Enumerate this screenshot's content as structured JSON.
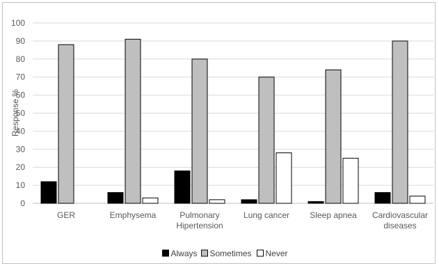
{
  "chart_data": {
    "type": "bar",
    "title": "",
    "xlabel": "",
    "ylabel": "Response %",
    "ylim": [
      0,
      100
    ],
    "yticks": [
      0,
      10,
      20,
      30,
      40,
      50,
      60,
      70,
      80,
      90,
      100
    ],
    "grid": true,
    "legend_position": "bottom",
    "categories": [
      [
        "GER"
      ],
      [
        "Emphysema"
      ],
      [
        "Pulmonary",
        "Hipertension"
      ],
      [
        "Lung cancer"
      ],
      [
        "Sleep apnea"
      ],
      [
        "Cardiovascular",
        "diseases"
      ]
    ],
    "series": [
      {
        "name": "Always",
        "color": "#000000",
        "values": [
          12,
          6,
          18,
          2,
          1,
          6
        ]
      },
      {
        "name": "Sometimes",
        "color": "#bfbfbf",
        "values": [
          88,
          91,
          80,
          70,
          74,
          90
        ]
      },
      {
        "name": "Never",
        "color": "#ffffff",
        "values": [
          0,
          3,
          2,
          28,
          25,
          4
        ]
      }
    ]
  }
}
